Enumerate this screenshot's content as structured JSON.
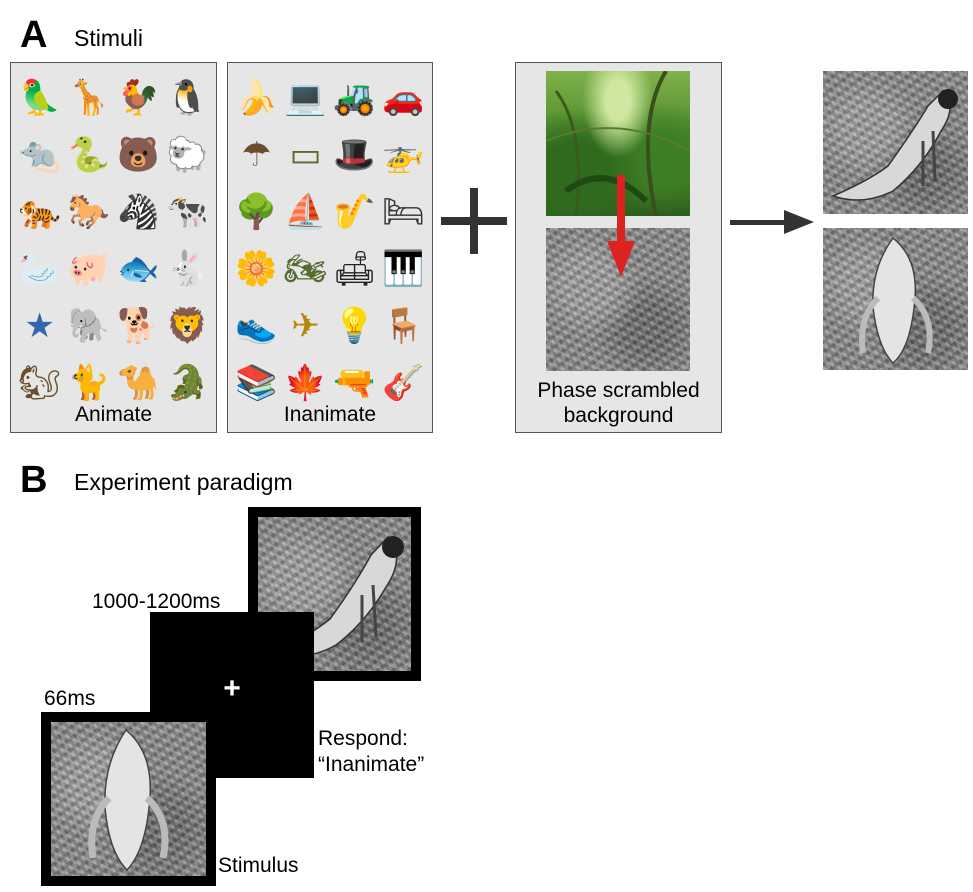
{
  "panel_a": {
    "letter": "A",
    "title": "Stimuli",
    "animate_label": "Animate",
    "inanimate_label": "Inanimate",
    "background_label_line1": "Phase scrambled",
    "background_label_line2": "background",
    "animate_icons": [
      "parrot-icon",
      "giraffe-icon",
      "chicken-icon",
      "penguin-icon",
      "rat-icon",
      "snake-icon",
      "bear-icon",
      "sheep-icon",
      "tiger-icon",
      "horse-icon",
      "zebra-icon",
      "cow-icon",
      "swan-icon",
      "pig-icon",
      "fish-icon",
      "rabbit-icon",
      "starfish-icon",
      "elephant-icon",
      "dog-icon",
      "lion-icon",
      "squirrel-icon",
      "cat-icon",
      "camel-icon",
      "crocodile-icon"
    ],
    "inanimate_icons": [
      "banana-icon",
      "laptop-icon",
      "tractor-icon",
      "car-icon",
      "umbrella-icon",
      "table-icon",
      "hat-icon",
      "helicopter-icon",
      "tree-icon",
      "ship-icon",
      "saxophone-icon",
      "bed-icon",
      "flower-icon",
      "motorcycle-icon",
      "sofa-icon",
      "piano-icon",
      "shoe-icon",
      "airplane-icon",
      "lamp-icon",
      "chair-icon",
      "books-icon",
      "leaf-icon",
      "pistol-icon",
      "guitar-icon"
    ],
    "colors": {
      "arrow_red": "#dd2222",
      "box_bg": "#e6e6e6"
    }
  },
  "panel_b": {
    "letter": "B",
    "title": "Experiment paradigm",
    "fixation_duration": "1000-1200ms",
    "stimulus_duration": "66ms",
    "fixation_symbol": "+",
    "response_line1": "Respond:",
    "response_line2": "“Inanimate”",
    "stimulus_label": "Stimulus"
  }
}
